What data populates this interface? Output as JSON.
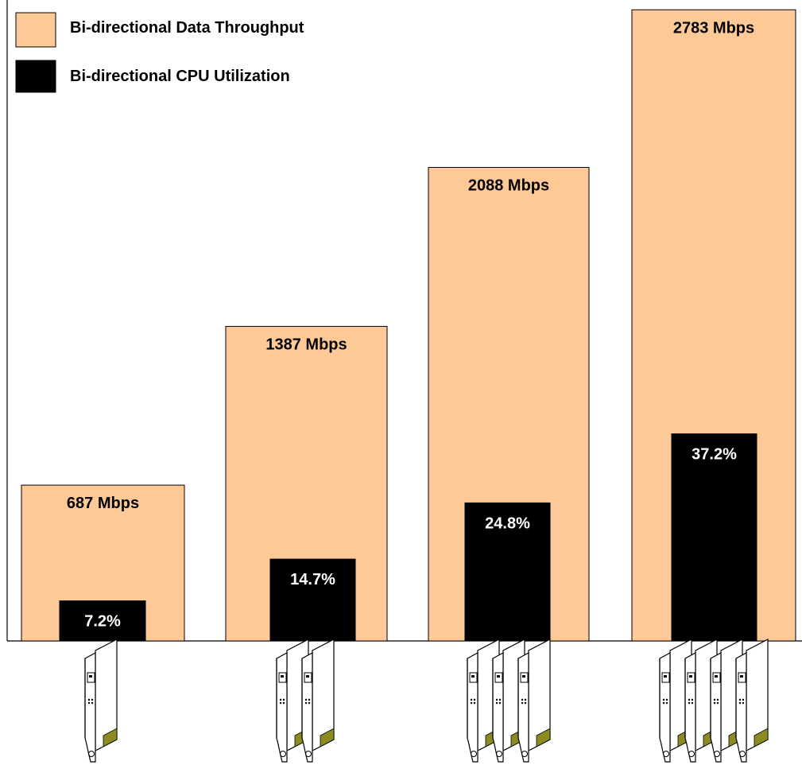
{
  "colors": {
    "throughput": "#FCC997",
    "cpu": "#000000",
    "throughput_label": "#000000",
    "cpu_label": "#ffffff",
    "connector": "#8B8B22"
  },
  "legend": [
    {
      "name": "Bi-directional Data Throughput",
      "color": "#FCC997"
    },
    {
      "name": "Bi-directional CPU Utilization",
      "color": "#000000"
    }
  ],
  "chart_data": {
    "type": "bar",
    "categories": [
      "",
      "",
      "",
      ""
    ],
    "adapter_counts": [
      1,
      2,
      3,
      4
    ],
    "series": [
      {
        "name": "Bi-directional Data Throughput",
        "values": [
          687,
          1387,
          2088,
          2783
        ],
        "labels": [
          "687 Mbps",
          "1387 Mbps",
          "2088 Mbps",
          "2783 Mbps"
        ]
      },
      {
        "name": "Bi-directional CPU Utilization",
        "values": [
          7.2,
          14.7,
          24.8,
          37.2
        ],
        "labels": [
          "7.2%",
          "14.7%",
          "24.8%",
          "37.2%"
        ]
      }
    ],
    "title": "",
    "xlabel": "",
    "ylabel": "",
    "throughput_ylim": [
      0,
      2990
    ],
    "cpu_ylim": [
      0,
      100
    ],
    "grid": false,
    "legend_position": "top-left",
    "icon": "network-adapter-card-icon"
  }
}
